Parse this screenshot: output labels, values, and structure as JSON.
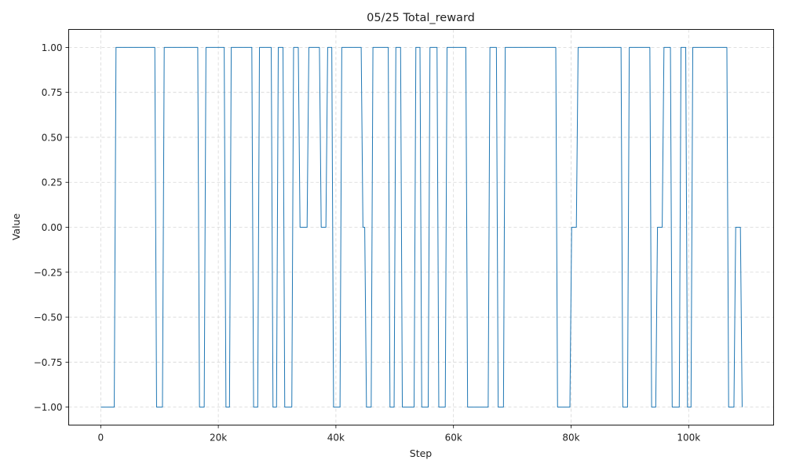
{
  "chart_data": {
    "type": "line",
    "title": "05/25  Total_reward",
    "xlabel": "Step",
    "ylabel": "Value",
    "xlim": [
      -5450,
      114450
    ],
    "ylim": [
      -1.1,
      1.1
    ],
    "grid": true,
    "colors": {
      "line": "#1f77b4",
      "grid": "#d6d6d6",
      "axis": "#000000"
    },
    "x_ticks": [
      {
        "value": 0,
        "label": "0"
      },
      {
        "value": 20000,
        "label": "20k"
      },
      {
        "value": 40000,
        "label": "40k"
      },
      {
        "value": 60000,
        "label": "60k"
      },
      {
        "value": 80000,
        "label": "80k"
      },
      {
        "value": 100000,
        "label": "100k"
      }
    ],
    "y_ticks": [
      {
        "value": -1.0,
        "label": "−1.00"
      },
      {
        "value": -0.75,
        "label": "−0.75"
      },
      {
        "value": -0.5,
        "label": "−0.50"
      },
      {
        "value": -0.25,
        "label": "−0.25"
      },
      {
        "value": 0.0,
        "label": "0.00"
      },
      {
        "value": 0.25,
        "label": "0.25"
      },
      {
        "value": 0.5,
        "label": "0.50"
      },
      {
        "value": 0.75,
        "label": "0.75"
      },
      {
        "value": 1.0,
        "label": "1.00"
      }
    ],
    "series": [
      {
        "x": [
          0,
          2300,
          2600,
          9200,
          9500,
          10500,
          10800,
          16500,
          16800,
          17600,
          17900,
          21000,
          21300,
          21900,
          22200,
          25700,
          26000,
          26700,
          27000,
          29000,
          29300,
          29900,
          30200,
          31000,
          31300,
          32500,
          32800,
          33600,
          33900,
          35100,
          35400,
          37200,
          37500,
          38300,
          38600,
          39300,
          39600,
          40700,
          41000,
          44300,
          44600,
          44900,
          45200,
          46000,
          46300,
          48900,
          49200,
          49900,
          50200,
          51000,
          51300,
          53300,
          53600,
          54300,
          54600,
          55700,
          56000,
          57200,
          57500,
          58600,
          58900,
          62100,
          62400,
          65900,
          66200,
          67300,
          67600,
          68500,
          68800,
          77400,
          77700,
          79800,
          80100,
          80900,
          81200,
          88500,
          88800,
          89600,
          89900,
          93400,
          93700,
          94400,
          94700,
          95500,
          95800,
          96900,
          97200,
          98400,
          98700,
          99500,
          99800,
          100400,
          100700,
          106500,
          106800,
          107700,
          108000,
          108800,
          109100
        ],
        "y": [
          -1,
          -1,
          1,
          1,
          -1,
          -1,
          1,
          1,
          -1,
          -1,
          1,
          1,
          -1,
          -1,
          1,
          1,
          -1,
          -1,
          1,
          1,
          -1,
          -1,
          1,
          1,
          -1,
          -1,
          1,
          1,
          0,
          0,
          1,
          1,
          0,
          0,
          1,
          1,
          -1,
          -1,
          1,
          1,
          0,
          0,
          -1,
          -1,
          1,
          1,
          -1,
          -1,
          1,
          1,
          -1,
          -1,
          1,
          1,
          -1,
          -1,
          1,
          1,
          -1,
          -1,
          1,
          1,
          -1,
          -1,
          1,
          1,
          -1,
          -1,
          1,
          1,
          -1,
          -1,
          0,
          0,
          1,
          1,
          -1,
          -1,
          1,
          1,
          -1,
          -1,
          0,
          0,
          1,
          1,
          -1,
          -1,
          1,
          1,
          -1,
          -1,
          1,
          1,
          -1,
          -1,
          0,
          0,
          -1
        ]
      }
    ]
  }
}
